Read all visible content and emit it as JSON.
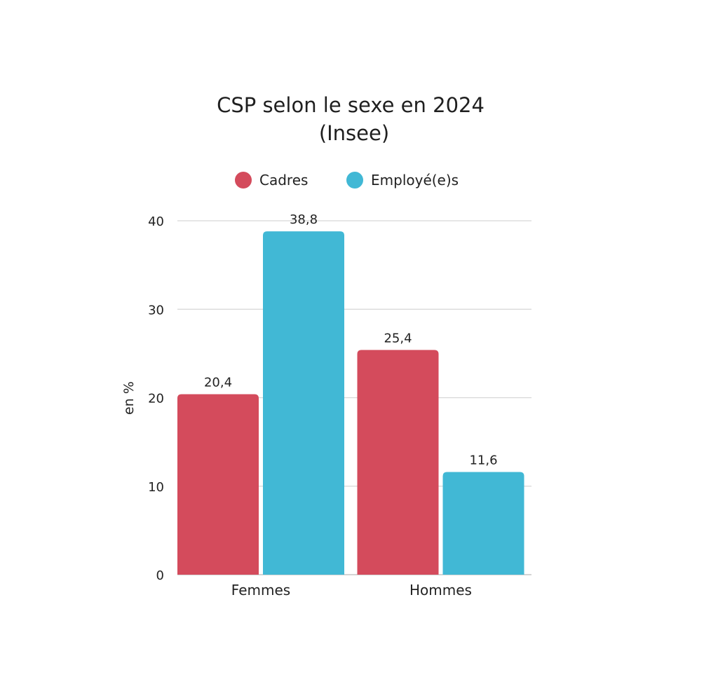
{
  "chart_data": {
    "type": "bar",
    "title": "CSP selon le sexe en 2024",
    "subtitle": "(Insee)",
    "xlabel": "",
    "ylabel": "en %",
    "categories": [
      "Femmes",
      "Hommes"
    ],
    "series": [
      {
        "name": "Cadres",
        "values": [
          20.4,
          25.4
        ],
        "labels": [
          "20,4",
          "25,4"
        ],
        "color": "#d44b5c"
      },
      {
        "name": "Employé(e)s",
        "values": [
          38.8,
          11.6
        ],
        "labels": [
          "38,8",
          "11,6"
        ],
        "color": "#41b8d5"
      }
    ],
    "ylim": [
      0,
      40
    ],
    "yticks": [
      0,
      10,
      20,
      30,
      40
    ],
    "grid": true,
    "legend_position": "top"
  }
}
